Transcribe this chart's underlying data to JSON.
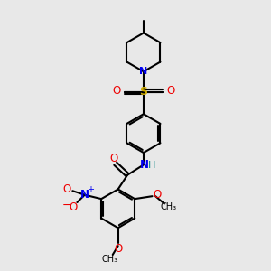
{
  "bg_color": "#e8e8e8",
  "bond_color": "#000000",
  "bond_lw": 1.5,
  "atom_colors": {
    "N": "#0000ee",
    "O": "#ee0000",
    "S": "#ccaa00",
    "H": "#008080",
    "C": "#000000"
  },
  "figsize": [
    3.0,
    3.0
  ],
  "dpi": 100,
  "xlim": [
    0,
    10
  ],
  "ylim": [
    0,
    10
  ]
}
